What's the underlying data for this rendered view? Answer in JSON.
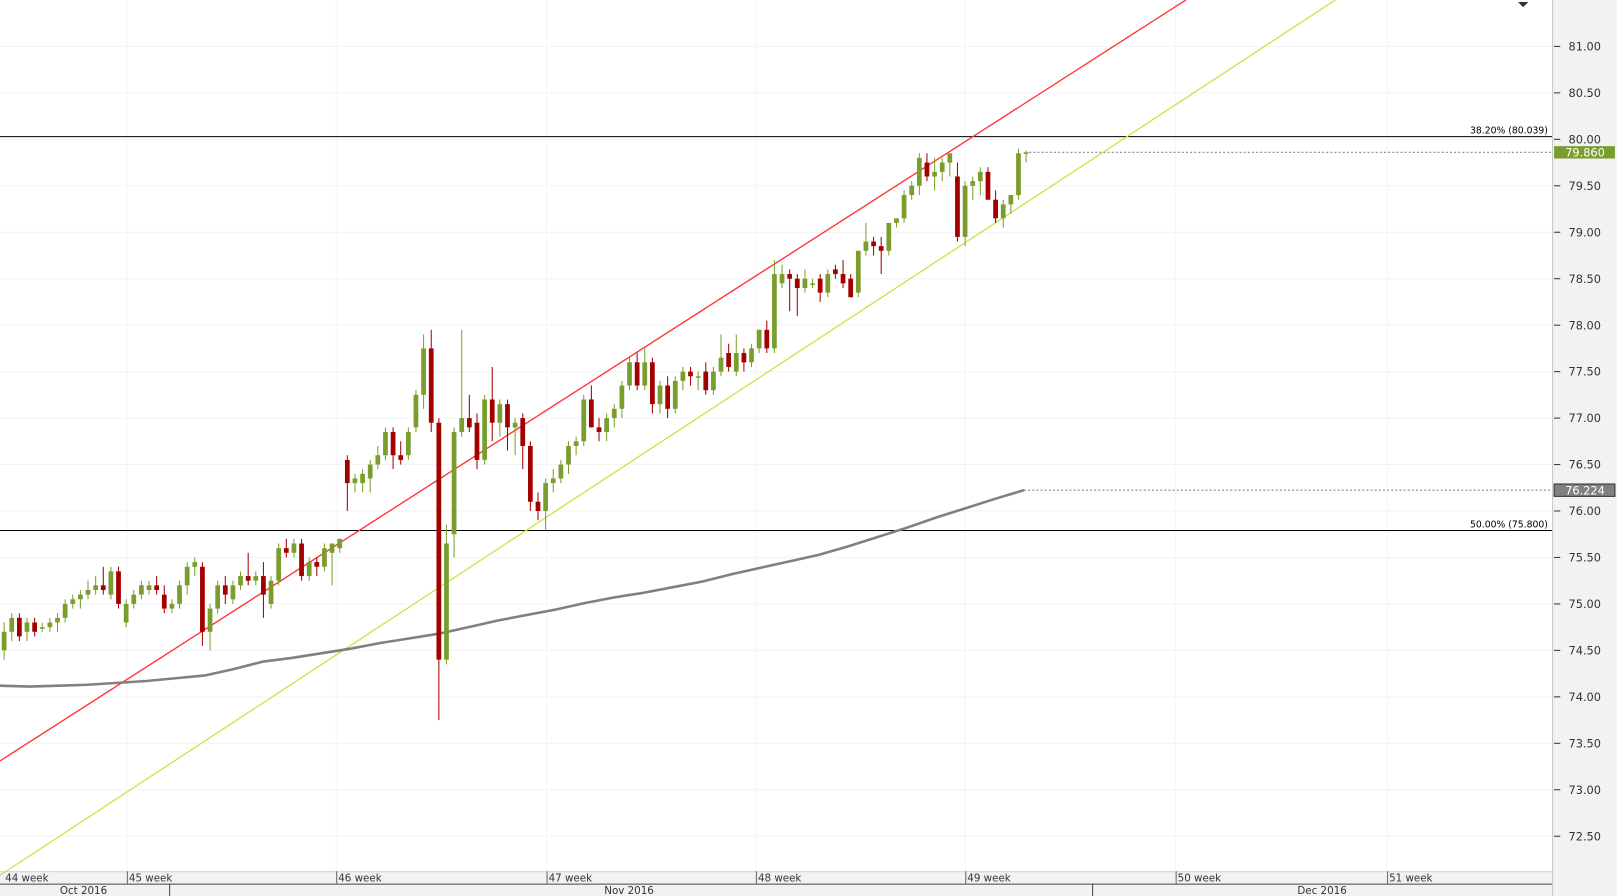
{
  "chart_data": {
    "type": "candlestick",
    "title": "",
    "colors": {
      "up": "#7a9e2e",
      "down": "#a30000",
      "ma": "#808080",
      "upper_trend": "#ff3333",
      "lower_trend": "#c8e64b",
      "last_price_bg": "#7a9e2e",
      "ma_price_bg": "#808080"
    },
    "ylim": [
      72.1,
      81.5
    ],
    "y_ticks": [
      "72.50",
      "73.00",
      "73.50",
      "74.00",
      "74.50",
      "75.00",
      "75.50",
      "76.00",
      "76.50",
      "77.00",
      "77.50",
      "78.00",
      "78.50",
      "79.00",
      "79.50",
      "80.00",
      "80.50",
      "81.00"
    ],
    "x_week_labels": [
      "44 week",
      "45 week",
      "46 week",
      "47 week",
      "48 week",
      "49 week",
      "50 week",
      "51 week"
    ],
    "x_month_labels": [
      "Oct 2016",
      "Nov 2016",
      "Dec 2016"
    ],
    "last_price": "79.860",
    "ma_last": "76.224",
    "fib_levels": [
      {
        "label": "38.20% (80.039)",
        "value": 80.039
      },
      {
        "label": "50.00% (75.800)",
        "value": 75.8
      }
    ],
    "trend_lines": [
      {
        "name": "upper",
        "start": 73.31,
        "end_at_top": 81.5
      },
      {
        "name": "lower",
        "start": 72.08,
        "end_at_top": 81.5
      }
    ],
    "candles_ohlc": [
      [
        74.5,
        74.8,
        74.4,
        74.7
      ],
      [
        74.7,
        74.9,
        74.6,
        74.85
      ],
      [
        74.85,
        74.9,
        74.6,
        74.65
      ],
      [
        74.7,
        74.85,
        74.6,
        74.8
      ],
      [
        74.8,
        74.85,
        74.65,
        74.7
      ],
      [
        74.75,
        74.8,
        74.7,
        74.75
      ],
      [
        74.75,
        74.85,
        74.7,
        74.8
      ],
      [
        74.8,
        74.9,
        74.7,
        74.85
      ],
      [
        74.85,
        75.05,
        74.8,
        75.0
      ],
      [
        75.0,
        75.1,
        74.95,
        75.05
      ],
      [
        75.05,
        75.15,
        74.95,
        75.1
      ],
      [
        75.1,
        75.25,
        75.05,
        75.15
      ],
      [
        75.15,
        75.3,
        75.1,
        75.2
      ],
      [
        75.2,
        75.4,
        75.1,
        75.15
      ],
      [
        75.1,
        75.4,
        75.05,
        75.35
      ],
      [
        75.35,
        75.4,
        74.95,
        75.0
      ],
      [
        74.8,
        75.05,
        74.75,
        75.0
      ],
      [
        75.0,
        75.15,
        74.95,
        75.1
      ],
      [
        75.1,
        75.25,
        75.05,
        75.2
      ],
      [
        75.15,
        75.25,
        75.1,
        75.2
      ],
      [
        75.2,
        75.3,
        75.1,
        75.15
      ],
      [
        75.1,
        75.2,
        74.9,
        74.95
      ],
      [
        74.95,
        75.05,
        74.9,
        75.0
      ],
      [
        75.0,
        75.25,
        74.95,
        75.2
      ],
      [
        75.2,
        75.45,
        75.1,
        75.4
      ],
      [
        75.4,
        75.5,
        75.3,
        75.45
      ],
      [
        75.4,
        75.45,
        74.55,
        74.7
      ],
      [
        74.7,
        75.0,
        74.5,
        74.95
      ],
      [
        74.95,
        75.25,
        74.9,
        75.2
      ],
      [
        75.2,
        75.3,
        75.0,
        75.1
      ],
      [
        75.05,
        75.25,
        75.0,
        75.2
      ],
      [
        75.2,
        75.35,
        75.15,
        75.3
      ],
      [
        75.3,
        75.55,
        75.2,
        75.25
      ],
      [
        75.25,
        75.35,
        75.2,
        75.3
      ],
      [
        75.3,
        75.45,
        74.85,
        75.1
      ],
      [
        75.0,
        75.3,
        74.95,
        75.25
      ],
      [
        75.25,
        75.65,
        75.2,
        75.6
      ],
      [
        75.6,
        75.7,
        75.5,
        75.55
      ],
      [
        75.55,
        75.7,
        75.5,
        75.65
      ],
      [
        75.65,
        75.7,
        75.25,
        75.3
      ],
      [
        75.3,
        75.5,
        75.25,
        75.45
      ],
      [
        75.45,
        75.5,
        75.3,
        75.4
      ],
      [
        75.4,
        75.65,
        75.35,
        75.6
      ],
      [
        75.55,
        75.65,
        75.2,
        75.65
      ],
      [
        75.6,
        75.7,
        75.55,
        75.7
      ],
      [
        76.55,
        76.6,
        76.0,
        76.3
      ],
      [
        76.3,
        76.4,
        76.2,
        76.35
      ],
      [
        76.3,
        76.45,
        76.2,
        76.4
      ],
      [
        76.35,
        76.55,
        76.2,
        76.5
      ],
      [
        76.5,
        76.7,
        76.45,
        76.6
      ],
      [
        76.6,
        76.9,
        76.55,
        76.85
      ],
      [
        76.85,
        76.9,
        76.45,
        76.6
      ],
      [
        76.6,
        76.75,
        76.5,
        76.55
      ],
      [
        76.6,
        76.9,
        76.55,
        76.85
      ],
      [
        76.9,
        77.3,
        76.85,
        77.25
      ],
      [
        77.25,
        77.9,
        77.1,
        77.75
      ],
      [
        77.75,
        77.95,
        76.85,
        76.95
      ],
      [
        76.95,
        77.0,
        73.75,
        74.4
      ],
      [
        74.4,
        75.85,
        74.35,
        75.65
      ],
      [
        75.75,
        76.9,
        75.5,
        76.85
      ],
      [
        76.85,
        77.95,
        76.8,
        77.0
      ],
      [
        77.0,
        77.25,
        76.85,
        76.9
      ],
      [
        76.95,
        77.05,
        76.45,
        76.55
      ],
      [
        76.55,
        77.25,
        76.5,
        77.2
      ],
      [
        77.2,
        77.55,
        76.75,
        76.95
      ],
      [
        76.95,
        77.2,
        76.8,
        77.15
      ],
      [
        77.15,
        77.2,
        76.65,
        76.9
      ],
      [
        76.9,
        77.0,
        76.6,
        76.95
      ],
      [
        77.0,
        77.05,
        76.45,
        76.7
      ],
      [
        76.7,
        76.75,
        76.0,
        76.1
      ],
      [
        76.1,
        76.2,
        75.9,
        76.0
      ],
      [
        76.0,
        76.35,
        75.8,
        76.3
      ],
      [
        76.3,
        76.45,
        76.2,
        76.35
      ],
      [
        76.35,
        76.55,
        76.3,
        76.5
      ],
      [
        76.5,
        76.75,
        76.4,
        76.7
      ],
      [
        76.7,
        76.8,
        76.6,
        76.75
      ],
      [
        76.75,
        77.25,
        76.7,
        77.2
      ],
      [
        77.2,
        77.35,
        76.9,
        76.9
      ],
      [
        76.9,
        77.0,
        76.75,
        76.85
      ],
      [
        76.85,
        77.05,
        76.75,
        77.0
      ],
      [
        77.0,
        77.15,
        76.9,
        77.1
      ],
      [
        77.1,
        77.4,
        77.0,
        77.35
      ],
      [
        77.35,
        77.65,
        77.3,
        77.6
      ],
      [
        77.6,
        77.7,
        77.3,
        77.35
      ],
      [
        77.35,
        77.75,
        77.3,
        77.6
      ],
      [
        77.6,
        77.65,
        77.05,
        77.15
      ],
      [
        77.15,
        77.4,
        77.05,
        77.35
      ],
      [
        77.35,
        77.45,
        77.0,
        77.1
      ],
      [
        77.1,
        77.45,
        77.05,
        77.4
      ],
      [
        77.4,
        77.55,
        77.3,
        77.5
      ],
      [
        77.5,
        77.55,
        77.35,
        77.45
      ],
      [
        77.45,
        77.5,
        77.3,
        77.45
      ],
      [
        77.5,
        77.6,
        77.25,
        77.3
      ],
      [
        77.3,
        77.55,
        77.25,
        77.5
      ],
      [
        77.5,
        77.9,
        77.45,
        77.65
      ],
      [
        77.7,
        77.8,
        77.5,
        77.55
      ],
      [
        77.5,
        77.9,
        77.45,
        77.7
      ],
      [
        77.7,
        77.75,
        77.5,
        77.6
      ],
      [
        77.6,
        77.8,
        77.55,
        77.75
      ],
      [
        77.75,
        77.95,
        77.7,
        77.95
      ],
      [
        77.95,
        78.05,
        77.7,
        77.75
      ],
      [
        77.75,
        78.7,
        77.7,
        78.55
      ],
      [
        78.45,
        78.65,
        78.4,
        78.55
      ],
      [
        78.55,
        78.6,
        78.15,
        78.5
      ],
      [
        78.5,
        78.55,
        78.1,
        78.4
      ],
      [
        78.4,
        78.6,
        78.35,
        78.5
      ],
      [
        78.45,
        78.5,
        78.4,
        78.45
      ],
      [
        78.5,
        78.55,
        78.25,
        78.35
      ],
      [
        78.35,
        78.6,
        78.3,
        78.55
      ],
      [
        78.6,
        78.65,
        78.5,
        78.55
      ],
      [
        78.55,
        78.7,
        78.4,
        78.45
      ],
      [
        78.5,
        78.55,
        78.3,
        78.3
      ],
      [
        78.35,
        78.8,
        78.3,
        78.8
      ],
      [
        78.8,
        79.1,
        78.75,
        78.9
      ],
      [
        78.9,
        78.95,
        78.75,
        78.85
      ],
      [
        78.85,
        78.95,
        78.55,
        78.8
      ],
      [
        78.8,
        79.1,
        78.75,
        79.1
      ],
      [
        79.1,
        79.15,
        79.05,
        79.15
      ],
      [
        79.15,
        79.45,
        79.1,
        79.4
      ],
      [
        79.4,
        79.55,
        79.35,
        79.5
      ],
      [
        79.5,
        79.85,
        79.4,
        79.8
      ],
      [
        79.75,
        79.85,
        79.55,
        79.6
      ],
      [
        79.6,
        79.8,
        79.45,
        79.65
      ],
      [
        79.65,
        79.8,
        79.55,
        79.75
      ],
      [
        79.75,
        79.85,
        79.6,
        79.85
      ],
      [
        79.6,
        79.75,
        78.9,
        78.95
      ],
      [
        78.95,
        79.55,
        78.85,
        79.5
      ],
      [
        79.5,
        79.6,
        79.35,
        79.55
      ],
      [
        79.55,
        79.7,
        79.4,
        79.65
      ],
      [
        79.65,
        79.7,
        79.35,
        79.35
      ],
      [
        79.35,
        79.45,
        79.1,
        79.15
      ],
      [
        79.15,
        79.35,
        79.05,
        79.3
      ],
      [
        79.3,
        79.4,
        79.2,
        79.4
      ],
      [
        79.4,
        79.9,
        79.35,
        79.85
      ],
      [
        79.85,
        79.88,
        79.75,
        79.86
      ]
    ],
    "ma_series": [
      74.12,
      74.11,
      74.12,
      74.13,
      74.15,
      74.17,
      74.2,
      74.23,
      74.3,
      74.38,
      74.42,
      74.47,
      74.52,
      74.58,
      74.63,
      74.68,
      74.75,
      74.82,
      74.88,
      74.94,
      75.01,
      75.07,
      75.12,
      75.18,
      75.24,
      75.32,
      75.39,
      75.46,
      75.53,
      75.62,
      75.72,
      75.82,
      75.93,
      76.03,
      76.13,
      76.224
    ]
  }
}
